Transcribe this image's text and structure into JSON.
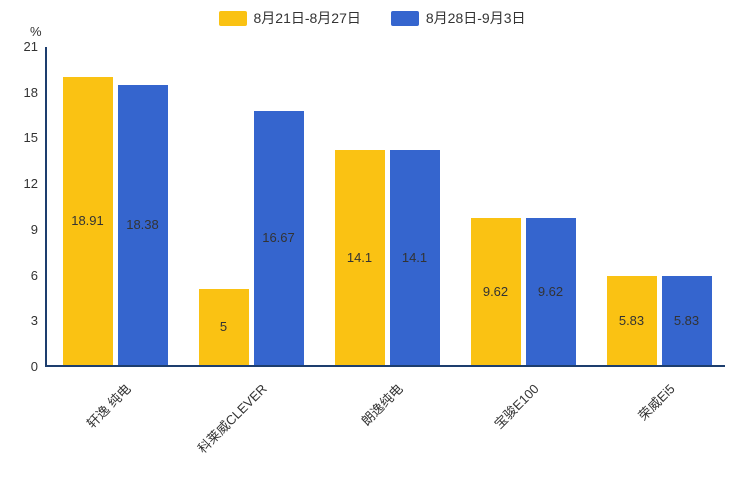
{
  "chart_data": {
    "type": "bar",
    "title": "",
    "xlabel": "",
    "ylabel": "%",
    "ylim": [
      0,
      21
    ],
    "yticks": [
      0,
      3,
      6,
      9,
      12,
      15,
      18,
      21
    ],
    "grid": false,
    "legend_position": "top",
    "categories": [
      "轩逸 纯电",
      "科莱威CLEVER",
      "朗逸纯电",
      "宝骏E100",
      "荣威Ei5"
    ],
    "series": [
      {
        "name": "8月21日-8月27日",
        "color": "#FAC213",
        "values": [
          18.91,
          5,
          14.1,
          9.62,
          5.83
        ]
      },
      {
        "name": "8月28日-9月3日",
        "color": "#3565CE",
        "values": [
          18.38,
          16.67,
          14.1,
          9.62,
          5.83
        ]
      }
    ]
  },
  "style": {
    "axis_color": "#1d3e6e",
    "text_color": "#333333",
    "background": "#ffffff"
  }
}
